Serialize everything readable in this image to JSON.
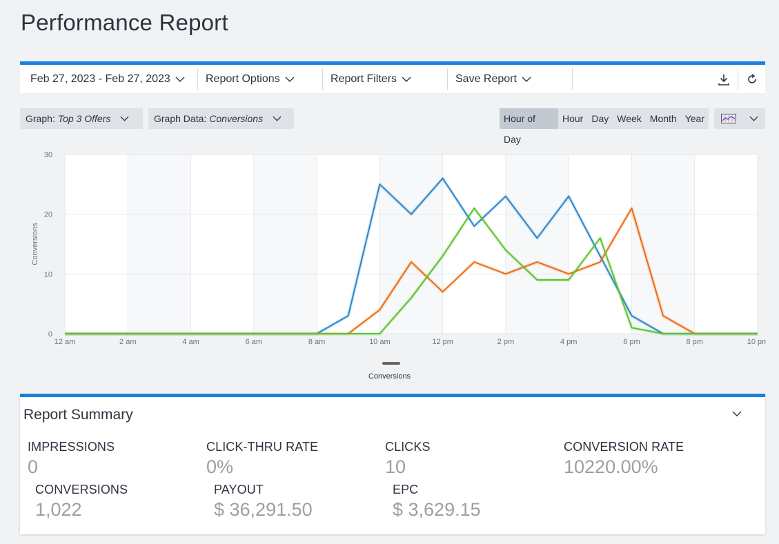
{
  "page": {
    "title": "Performance Report"
  },
  "toolbar": {
    "date_range": "Feb 27, 2023 - Feb 27, 2023",
    "report_options": "Report Options",
    "report_filters": "Report Filters",
    "save_report": "Save Report",
    "icons": [
      "download-icon",
      "refresh-icon"
    ]
  },
  "graph_controls": {
    "graph_label": "Graph:",
    "graph_value": "Top 3 Offers",
    "data_label": "Graph Data:",
    "data_value": "Conversions",
    "periods": [
      "Hour of Day",
      "Hour",
      "Day",
      "Week",
      "Month",
      "Year"
    ],
    "active_period": "Hour of Day",
    "chart_type_icon": "chart-type-icon"
  },
  "chart_data": {
    "type": "line",
    "ylabel": "Conversions",
    "xlabel": "",
    "ylim": [
      0,
      30
    ],
    "yticks": [
      0,
      10,
      20,
      30
    ],
    "x_tick_labels": [
      "12 am",
      "2 am",
      "4 am",
      "6 am",
      "8 am",
      "10 am",
      "12 pm",
      "2 pm",
      "4 pm",
      "6 pm",
      "8 pm",
      "10 pm"
    ],
    "x": [
      0,
      1,
      2,
      3,
      4,
      5,
      6,
      7,
      8,
      9,
      10,
      11,
      12,
      13,
      14,
      15,
      16,
      17,
      18,
      19,
      20,
      21,
      22
    ],
    "series": [
      {
        "color": "#2a86c8",
        "values": [
          0,
          0,
          0,
          0,
          0,
          0,
          0,
          0,
          0,
          3,
          25,
          20,
          26,
          18,
          23,
          16,
          23,
          13,
          3,
          0,
          0,
          0,
          0
        ]
      },
      {
        "color": "#f06a12",
        "values": [
          0,
          0,
          0,
          0,
          0,
          0,
          0,
          0,
          0,
          0,
          4,
          12,
          7,
          12,
          10,
          12,
          10,
          12,
          21,
          3,
          0,
          0,
          0
        ]
      },
      {
        "color": "#58c42a",
        "values": [
          0,
          0,
          0,
          0,
          0,
          0,
          0,
          0,
          0,
          0,
          0,
          6,
          13,
          21,
          14,
          9,
          9,
          16,
          1,
          0,
          0,
          0,
          0
        ]
      }
    ],
    "legend": {
      "label": "Conversions",
      "placement": "bottom"
    },
    "grid": true
  },
  "summary": {
    "title": "Report Summary",
    "metrics": [
      {
        "label": "IMPRESSIONS",
        "value": "0"
      },
      {
        "label": "CLICK-THRU RATE",
        "value": "0%"
      },
      {
        "label": "CLICKS",
        "value": "10"
      },
      {
        "label": "CONVERSION RATE",
        "value": "10220.00%"
      },
      {
        "label": "CONVERSIONS",
        "value": "1,022"
      },
      {
        "label": "PAYOUT",
        "value": "$ 36,291.50"
      },
      {
        "label": "EPC",
        "value": "$ 3,629.15"
      }
    ]
  }
}
